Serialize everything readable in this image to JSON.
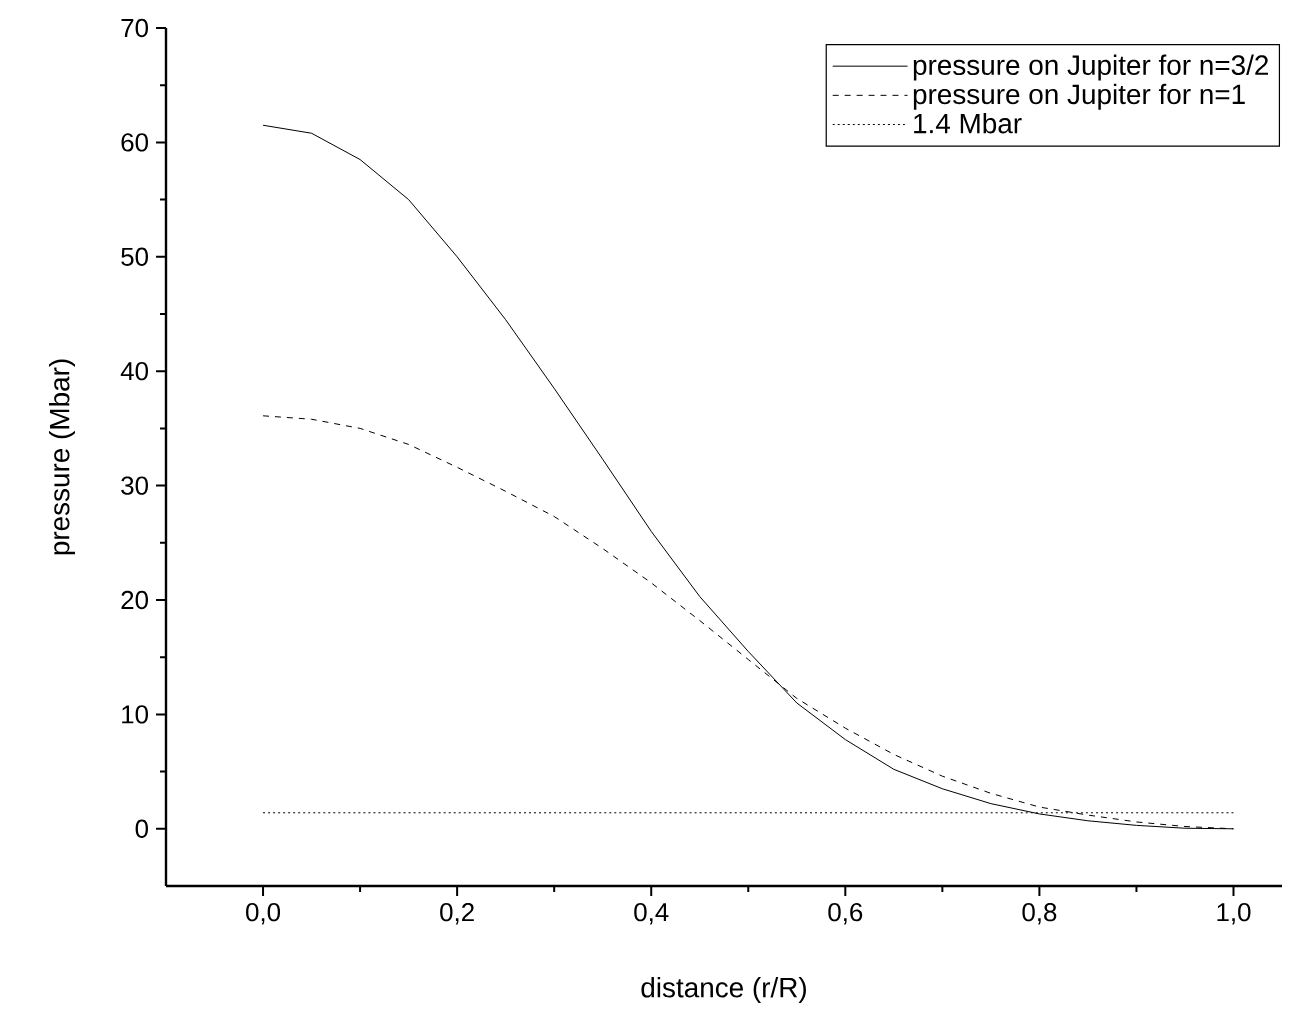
{
  "chart_data": {
    "type": "line",
    "xlabel": "distance  (r/R)",
    "ylabel": "pressure  (Mbar)",
    "x": [
      0,
      0.05,
      0.1,
      0.15,
      0.2,
      0.25,
      0.3,
      0.35,
      0.4,
      0.45,
      0.5,
      0.55,
      0.6,
      0.65,
      0.7,
      0.75,
      0.8,
      0.85,
      0.9,
      0.95,
      1.0
    ],
    "series": [
      {
        "name": "pressure on Jupiter for n=3/2",
        "color": "#000000",
        "line_style": "solid",
        "values": [
          61.5,
          60.8,
          58.5,
          55,
          50,
          44.5,
          38.5,
          32.3,
          26,
          20.3,
          15.5,
          11,
          7.8,
          5.2,
          3.5,
          2.2,
          1.3,
          0.7,
          0.3,
          0.05,
          0
        ]
      },
      {
        "name": "pressure on Jupiter for n=1",
        "color": "#000000",
        "line_style": "dashed",
        "values": [
          36.1,
          35.8,
          35,
          33.6,
          31.6,
          29.5,
          27.3,
          24.5,
          21.5,
          18.2,
          14.8,
          11.4,
          8.8,
          6.5,
          4.6,
          3.1,
          1.9,
          1.2,
          0.6,
          0.2,
          0
        ]
      },
      {
        "name": "1.4 Mbar",
        "color": "#000000",
        "line_style": "dotted",
        "x": [
          0,
          1.0
        ],
        "values": [
          1.4,
          1.4
        ]
      }
    ],
    "xlim": [
      -0.1,
      1.05
    ],
    "ylim": [
      -5,
      70
    ],
    "xticks": [
      {
        "value": 0,
        "label": "0,0"
      },
      {
        "value": 0.2,
        "label": "0,2"
      },
      {
        "value": 0.4,
        "label": "0,4"
      },
      {
        "value": 0.6,
        "label": "0,6"
      },
      {
        "value": 0.8,
        "label": "0,8"
      },
      {
        "value": 1.0,
        "label": "1,0"
      }
    ],
    "yticks": [
      0,
      10,
      20,
      30,
      40,
      50,
      60,
      70
    ],
    "legend": "top right",
    "marker": "none"
  }
}
